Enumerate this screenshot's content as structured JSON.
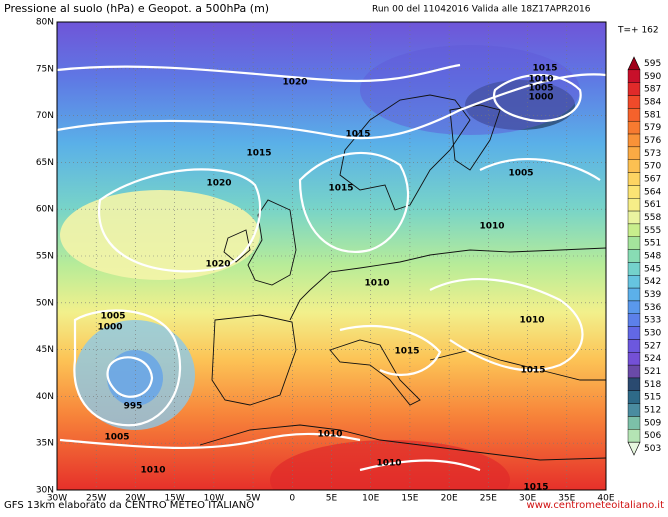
{
  "header": {
    "title": "Pressione al suolo (hPa) e Geopot. a 500hPa (m)",
    "run": "Run 00 del 11042016 Valida alle 18Z17APR2016",
    "step": "T=+ 162"
  },
  "map": {
    "lat_labels": [
      "80N",
      "75N",
      "70N",
      "65N",
      "60N",
      "55N",
      "50N",
      "45N",
      "40N",
      "35N",
      "30N"
    ],
    "lon_labels": [
      "30W",
      "25W",
      "20W",
      "15W",
      "10W",
      "5W",
      "0",
      "5E",
      "10E",
      "15E",
      "20E",
      "25E",
      "30E",
      "35E",
      "40E"
    ],
    "isobar_labels": [
      "1020",
      "1015",
      "1015",
      "1020",
      "1015",
      "1020",
      "1015",
      "1010",
      "1005",
      "1000",
      "1005",
      "1010",
      "1010",
      "1005",
      "1000",
      "1010",
      "1015",
      "1015",
      "995",
      "1005",
      "1010",
      "1010",
      "1010",
      "1015"
    ]
  },
  "legend": {
    "entries": [
      {
        "label": "595",
        "color": "#a0001a"
      },
      {
        "label": "590",
        "color": "#c8102a"
      },
      {
        "label": "587",
        "color": "#e02a2a"
      },
      {
        "label": "584",
        "color": "#f04a2a"
      },
      {
        "label": "581",
        "color": "#f5622c"
      },
      {
        "label": "579",
        "color": "#f77a30"
      },
      {
        "label": "576",
        "color": "#f99238"
      },
      {
        "label": "573",
        "color": "#fbaa44"
      },
      {
        "label": "570",
        "color": "#fcc052"
      },
      {
        "label": "567",
        "color": "#fdd462"
      },
      {
        "label": "564",
        "color": "#fbe474"
      },
      {
        "label": "561",
        "color": "#f6ee88"
      },
      {
        "label": "558",
        "color": "#eaf4a0"
      },
      {
        "label": "555",
        "color": "#c8ee8c"
      },
      {
        "label": "551",
        "color": "#a4e49c"
      },
      {
        "label": "548",
        "color": "#88dcb4"
      },
      {
        "label": "545",
        "color": "#74d2cc"
      },
      {
        "label": "542",
        "color": "#66c4e0"
      },
      {
        "label": "539",
        "color": "#5cb0ea"
      },
      {
        "label": "536",
        "color": "#5a98ec"
      },
      {
        "label": "533",
        "color": "#5c80ea"
      },
      {
        "label": "530",
        "color": "#6268e6"
      },
      {
        "label": "527",
        "color": "#6c58de"
      },
      {
        "label": "524",
        "color": "#7450d6"
      },
      {
        "label": "521",
        "color": "#6a4aa8"
      },
      {
        "label": "518",
        "color": "#2a4a70"
      },
      {
        "label": "515",
        "color": "#2e6a88"
      },
      {
        "label": "512",
        "color": "#4a8ca0"
      },
      {
        "label": "509",
        "color": "#7cc0a8"
      },
      {
        "label": "506",
        "color": "#b4e4b4"
      },
      {
        "label": "503",
        "color": "#e8f8e0"
      }
    ]
  },
  "footer": {
    "credit": "GFS 13km elaborato da CENTRO METEO ITALIANO",
    "url": "www.centrometeoitaliano.it"
  }
}
